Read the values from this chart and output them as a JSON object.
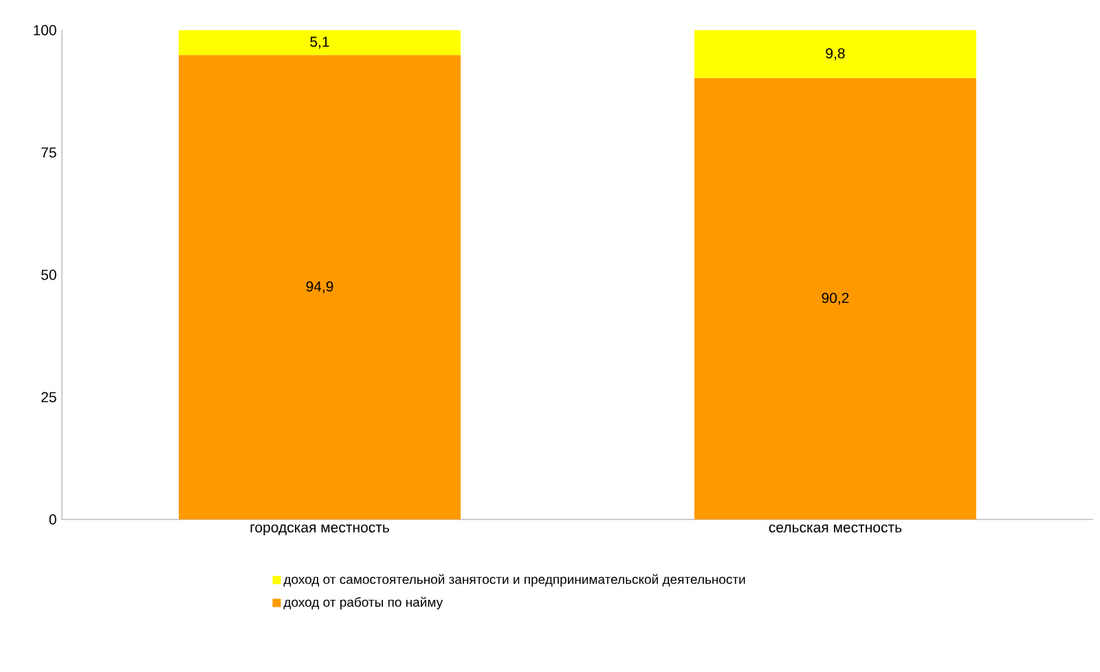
{
  "chart_data": {
    "type": "bar",
    "stacked": true,
    "categories": [
      "городская местность",
      "сельская местность"
    ],
    "series": [
      {
        "name": "доход от работы по найму",
        "color": "#ff9900",
        "values": [
          94.9,
          90.2
        ],
        "value_labels": [
          "94,9",
          "90,2"
        ]
      },
      {
        "name": "доход от самостоятельной занятости и предпринимательской деятельности",
        "color": "#ffff00",
        "values": [
          5.1,
          9.8
        ],
        "value_labels": [
          "5,1",
          "9,8"
        ]
      }
    ],
    "ylim": [
      0,
      100
    ],
    "yticks": [
      0,
      25,
      50,
      75,
      100
    ],
    "grid": false,
    "legend": "bottom"
  }
}
